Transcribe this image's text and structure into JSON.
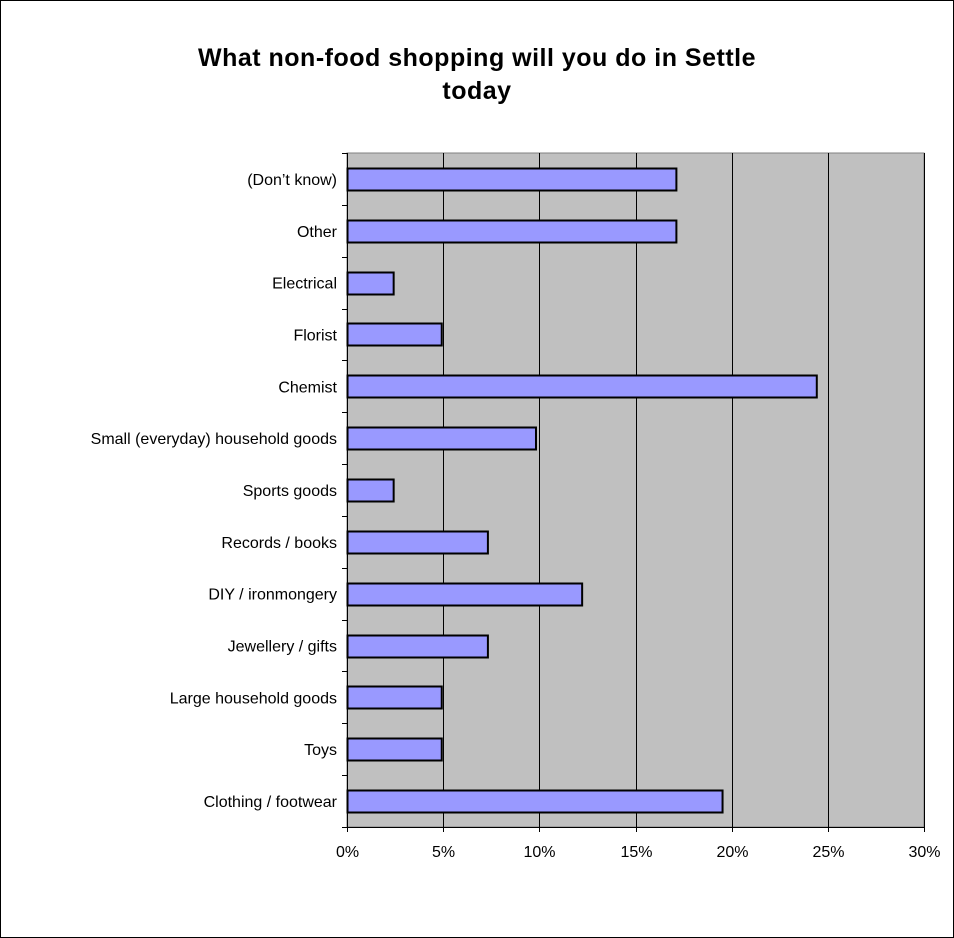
{
  "chart_data": {
    "type": "bar",
    "orientation": "horizontal",
    "title": "What non-food shopping will you do in Settle today",
    "title_lines": [
      "What non-food shopping will you do in Settle",
      "today"
    ],
    "categories": [
      "(Don’t know)",
      "Other",
      "Electrical",
      "Florist",
      "Chemist",
      "Small (everyday) household goods",
      "Sports goods",
      "Records / books",
      "DIY / ironmongery",
      "Jewellery / gifts",
      "Large household goods",
      "Toys",
      "Clothing / footwear"
    ],
    "values": [
      17.1,
      17.1,
      2.4,
      4.9,
      24.4,
      9.8,
      2.4,
      7.3,
      12.2,
      7.3,
      4.9,
      4.9,
      19.5
    ],
    "xlim": [
      0,
      30
    ],
    "xticks": [
      0,
      5,
      10,
      15,
      20,
      25,
      30
    ],
    "xtick_labels": [
      "0%",
      "5%",
      "10%",
      "15%",
      "20%",
      "25%",
      "30%"
    ],
    "xlabel": "",
    "ylabel": "",
    "grid": "vertical",
    "legend": "none",
    "colors": {
      "bar_fill": "#9999ff",
      "bar_stroke": "#000000",
      "plot_background": "#c0c0c0",
      "gridline": "#000000"
    }
  }
}
